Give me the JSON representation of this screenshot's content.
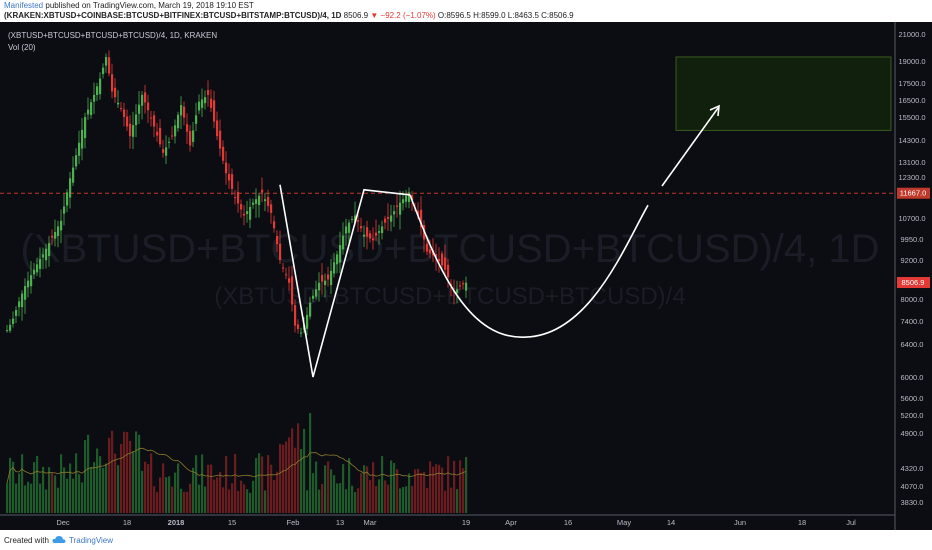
{
  "header": {
    "author": "Manifested",
    "published_text": "published on TradingView.com, March 19, 2018 19:10 EST",
    "symbol_line": "(KRAKEN:XBTUSD+COINBASE:BTCUSD+BITFINEX:BTCUSD+BITSTAMP:BTCUSD)/4, 1D",
    "last_price": "8506.9",
    "change": "−92.2 (−1.07%)",
    "open": "O:8596.5",
    "high": "H:8599.0",
    "low": "L:8463.5",
    "close": "C:8506.9"
  },
  "legend": {
    "symbol": "(XBTUSD+BTCUSD+BTCUSD+BTCUSD)/4, 1D, KRAKEN",
    "volume": "Vol (20)"
  },
  "watermark": {
    "line1": "(XBTUSD+BTCUSD+BTCUSD+BTCUSD)/4, 1D",
    "line2": "(XBTUSD+BTCUSD+BTCUSD+BTCUSD)/4"
  },
  "footer": {
    "created_with": "Created with",
    "brand": "TradingView"
  },
  "colors": {
    "background": "#0b0d13",
    "up": "#4caf50",
    "down": "#e53935",
    "annotation": "#ffffff",
    "target_box": "#3a5a1e",
    "dashed_level": "#c0392b"
  },
  "chart_data": {
    "type": "candlestick",
    "x_axis_labels": [
      "Dec",
      "18",
      "2018",
      "15",
      "Feb",
      "13",
      "Mar",
      "19",
      "Apr",
      "16",
      "May",
      "14",
      "Jun",
      "18",
      "Jul"
    ],
    "y_axis_labels": [
      "21000.0",
      "19000.0",
      "17500.0",
      "16500.0",
      "15500.0",
      "14300.0",
      "13100.0",
      "12300.0",
      "10700.0",
      "9950.0",
      "9200.0",
      "8000.0",
      "7400.0",
      "6400.0",
      "6000.0",
      "5600.0",
      "5200.0",
      "4900.0",
      "4320.0",
      "4070.0",
      "3830.0"
    ],
    "last_price_label": "8506.9",
    "horizontal_level_label": "11667.0",
    "ylim": [
      3700,
      21500
    ],
    "horizontal_level": 11667,
    "target_zone": [
      14800,
      19300
    ],
    "projection_low": 6700,
    "w_pattern_points": [
      {
        "date": "Jan 28",
        "price": 12000
      },
      {
        "date": "Feb 6",
        "price": 6000
      },
      {
        "date": "Feb 19",
        "price": 11800
      },
      {
        "date": "Mar 5",
        "price": 11600
      }
    ],
    "series": [
      {
        "name": "",
        "values": []
      }
    ]
  }
}
